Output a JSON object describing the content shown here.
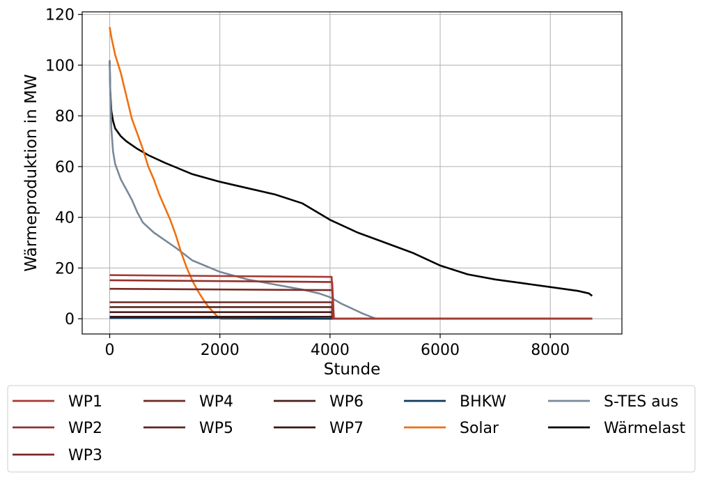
{
  "chart_data": {
    "type": "line",
    "title": "",
    "xlabel": "Stunde",
    "ylabel": "Wärmeproduktion in MW",
    "xlim": [
      -500,
      9300
    ],
    "ylim": [
      -6,
      121
    ],
    "xticks": [
      0,
      2000,
      4000,
      6000,
      8000
    ],
    "xtick_labels": [
      "0",
      "2000",
      "4000",
      "6000",
      "8000"
    ],
    "yticks": [
      0,
      20,
      40,
      60,
      80,
      100,
      120
    ],
    "ytick_labels": [
      "0",
      "20",
      "40",
      "60",
      "80",
      "100",
      "120"
    ],
    "grid": true,
    "legend_position": "bottom-outside",
    "series": [
      {
        "name": "WP1",
        "color": "#a63a32",
        "x": [
          0,
          3950,
          4030,
          4060,
          4060,
          8760
        ],
        "y": [
          17.2,
          16.5,
          16.5,
          0,
          0,
          0
        ]
      },
      {
        "name": "WP2",
        "color": "#93302b",
        "x": [
          0,
          3960,
          4040,
          4070,
          4070,
          8760
        ],
        "y": [
          15.2,
          14.5,
          14.5,
          0,
          0,
          0
        ]
      },
      {
        "name": "WP3",
        "color": "#7b2a26",
        "x": [
          0,
          3980,
          4040,
          4070,
          4070,
          8760
        ],
        "y": [
          11.8,
          11.3,
          11.3,
          0,
          0,
          0
        ]
      },
      {
        "name": "WP4",
        "color": "#6b2a24",
        "x": [
          0,
          4040,
          4040,
          8760
        ],
        "y": [
          6.5,
          6.5,
          0,
          0
        ]
      },
      {
        "name": "WP5",
        "color": "#5c2520",
        "x": [
          0,
          4040,
          4040,
          8760
        ],
        "y": [
          4.6,
          4.6,
          0,
          0
        ]
      },
      {
        "name": "WP6",
        "color": "#4a1f1c",
        "x": [
          0,
          4040,
          4040,
          8760
        ],
        "y": [
          2.6,
          2.6,
          0,
          0
        ]
      },
      {
        "name": "WP7",
        "color": "#3a1716",
        "x": [
          0,
          4040,
          4040,
          8760
        ],
        "y": [
          0.8,
          0.8,
          0,
          0
        ]
      },
      {
        "name": "BHKW",
        "color": "#0c3a5c",
        "x": [
          0,
          2000,
          4040,
          8760
        ],
        "y": [
          0.3,
          0.3,
          0,
          0
        ]
      },
      {
        "name": "Solar",
        "color": "#f07010",
        "x": [
          0,
          30,
          100,
          200,
          300,
          400,
          500,
          600,
          700,
          800,
          900,
          1000,
          1100,
          1200,
          1300,
          1400,
          1500,
          1600,
          1700,
          1800,
          1900,
          1970,
          2020,
          2100,
          8760
        ],
        "y": [
          115,
          111,
          104,
          97,
          88,
          79,
          73,
          67,
          60,
          55,
          49,
          44,
          39,
          33,
          26,
          20,
          15,
          11,
          7.5,
          4.5,
          2.2,
          0.6,
          0,
          0,
          0
        ]
      },
      {
        "name": "S-TES aus",
        "color": "#778899",
        "x": [
          0,
          10,
          30,
          60,
          100,
          150,
          200,
          300,
          400,
          500,
          600,
          800,
          1000,
          1200,
          1500,
          2000,
          2500,
          3000,
          3500,
          3800,
          4000,
          4200,
          4400,
          4600,
          4800,
          4850,
          8760
        ],
        "y": [
          102,
          90,
          75,
          66,
          61,
          58,
          55,
          51,
          47,
          42,
          38,
          34,
          31,
          28,
          23,
          18.5,
          15.5,
          13.5,
          11.5,
          10,
          8.5,
          6,
          4,
          2,
          0.3,
          0,
          0
        ]
      },
      {
        "name": "Wärmelast",
        "color": "#000000",
        "x": [
          0,
          10,
          30,
          60,
          100,
          200,
          300,
          500,
          700,
          1000,
          1500,
          2000,
          2500,
          3000,
          3500,
          4000,
          4500,
          5000,
          5500,
          6000,
          6500,
          7000,
          7500,
          8000,
          8500,
          8700,
          8760
        ],
        "y": [
          101.5,
          90,
          82,
          78,
          75,
          72,
          70,
          67,
          64.5,
          61.5,
          57,
          54,
          51.5,
          49,
          45.5,
          39,
          34,
          30,
          26,
          21,
          17.5,
          15.5,
          14,
          12.5,
          11,
          10,
          9
        ]
      }
    ]
  }
}
